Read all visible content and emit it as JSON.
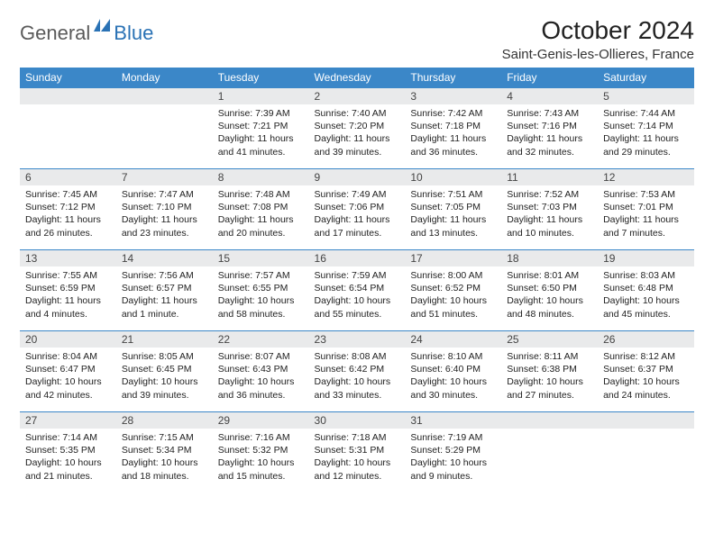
{
  "brand": {
    "name1": "General",
    "name2": "Blue"
  },
  "title": "October 2024",
  "location": "Saint-Genis-les-Ollieres, France",
  "colors": {
    "header_bg": "#3b87c8",
    "header_text": "#ffffff",
    "daynum_bg": "#e9eaeb",
    "row_border": "#3b87c8",
    "logo_gray": "#5a5a5a",
    "logo_blue": "#2a72b5"
  },
  "weekdays": [
    "Sunday",
    "Monday",
    "Tuesday",
    "Wednesday",
    "Thursday",
    "Friday",
    "Saturday"
  ],
  "weeks": [
    [
      {
        "day": "",
        "sunrise": "",
        "sunset": "",
        "daylight": ""
      },
      {
        "day": "",
        "sunrise": "",
        "sunset": "",
        "daylight": ""
      },
      {
        "day": "1",
        "sunrise": "Sunrise: 7:39 AM",
        "sunset": "Sunset: 7:21 PM",
        "daylight": "Daylight: 11 hours and 41 minutes."
      },
      {
        "day": "2",
        "sunrise": "Sunrise: 7:40 AM",
        "sunset": "Sunset: 7:20 PM",
        "daylight": "Daylight: 11 hours and 39 minutes."
      },
      {
        "day": "3",
        "sunrise": "Sunrise: 7:42 AM",
        "sunset": "Sunset: 7:18 PM",
        "daylight": "Daylight: 11 hours and 36 minutes."
      },
      {
        "day": "4",
        "sunrise": "Sunrise: 7:43 AM",
        "sunset": "Sunset: 7:16 PM",
        "daylight": "Daylight: 11 hours and 32 minutes."
      },
      {
        "day": "5",
        "sunrise": "Sunrise: 7:44 AM",
        "sunset": "Sunset: 7:14 PM",
        "daylight": "Daylight: 11 hours and 29 minutes."
      }
    ],
    [
      {
        "day": "6",
        "sunrise": "Sunrise: 7:45 AM",
        "sunset": "Sunset: 7:12 PM",
        "daylight": "Daylight: 11 hours and 26 minutes."
      },
      {
        "day": "7",
        "sunrise": "Sunrise: 7:47 AM",
        "sunset": "Sunset: 7:10 PM",
        "daylight": "Daylight: 11 hours and 23 minutes."
      },
      {
        "day": "8",
        "sunrise": "Sunrise: 7:48 AM",
        "sunset": "Sunset: 7:08 PM",
        "daylight": "Daylight: 11 hours and 20 minutes."
      },
      {
        "day": "9",
        "sunrise": "Sunrise: 7:49 AM",
        "sunset": "Sunset: 7:06 PM",
        "daylight": "Daylight: 11 hours and 17 minutes."
      },
      {
        "day": "10",
        "sunrise": "Sunrise: 7:51 AM",
        "sunset": "Sunset: 7:05 PM",
        "daylight": "Daylight: 11 hours and 13 minutes."
      },
      {
        "day": "11",
        "sunrise": "Sunrise: 7:52 AM",
        "sunset": "Sunset: 7:03 PM",
        "daylight": "Daylight: 11 hours and 10 minutes."
      },
      {
        "day": "12",
        "sunrise": "Sunrise: 7:53 AM",
        "sunset": "Sunset: 7:01 PM",
        "daylight": "Daylight: 11 hours and 7 minutes."
      }
    ],
    [
      {
        "day": "13",
        "sunrise": "Sunrise: 7:55 AM",
        "sunset": "Sunset: 6:59 PM",
        "daylight": "Daylight: 11 hours and 4 minutes."
      },
      {
        "day": "14",
        "sunrise": "Sunrise: 7:56 AM",
        "sunset": "Sunset: 6:57 PM",
        "daylight": "Daylight: 11 hours and 1 minute."
      },
      {
        "day": "15",
        "sunrise": "Sunrise: 7:57 AM",
        "sunset": "Sunset: 6:55 PM",
        "daylight": "Daylight: 10 hours and 58 minutes."
      },
      {
        "day": "16",
        "sunrise": "Sunrise: 7:59 AM",
        "sunset": "Sunset: 6:54 PM",
        "daylight": "Daylight: 10 hours and 55 minutes."
      },
      {
        "day": "17",
        "sunrise": "Sunrise: 8:00 AM",
        "sunset": "Sunset: 6:52 PM",
        "daylight": "Daylight: 10 hours and 51 minutes."
      },
      {
        "day": "18",
        "sunrise": "Sunrise: 8:01 AM",
        "sunset": "Sunset: 6:50 PM",
        "daylight": "Daylight: 10 hours and 48 minutes."
      },
      {
        "day": "19",
        "sunrise": "Sunrise: 8:03 AM",
        "sunset": "Sunset: 6:48 PM",
        "daylight": "Daylight: 10 hours and 45 minutes."
      }
    ],
    [
      {
        "day": "20",
        "sunrise": "Sunrise: 8:04 AM",
        "sunset": "Sunset: 6:47 PM",
        "daylight": "Daylight: 10 hours and 42 minutes."
      },
      {
        "day": "21",
        "sunrise": "Sunrise: 8:05 AM",
        "sunset": "Sunset: 6:45 PM",
        "daylight": "Daylight: 10 hours and 39 minutes."
      },
      {
        "day": "22",
        "sunrise": "Sunrise: 8:07 AM",
        "sunset": "Sunset: 6:43 PM",
        "daylight": "Daylight: 10 hours and 36 minutes."
      },
      {
        "day": "23",
        "sunrise": "Sunrise: 8:08 AM",
        "sunset": "Sunset: 6:42 PM",
        "daylight": "Daylight: 10 hours and 33 minutes."
      },
      {
        "day": "24",
        "sunrise": "Sunrise: 8:10 AM",
        "sunset": "Sunset: 6:40 PM",
        "daylight": "Daylight: 10 hours and 30 minutes."
      },
      {
        "day": "25",
        "sunrise": "Sunrise: 8:11 AM",
        "sunset": "Sunset: 6:38 PM",
        "daylight": "Daylight: 10 hours and 27 minutes."
      },
      {
        "day": "26",
        "sunrise": "Sunrise: 8:12 AM",
        "sunset": "Sunset: 6:37 PM",
        "daylight": "Daylight: 10 hours and 24 minutes."
      }
    ],
    [
      {
        "day": "27",
        "sunrise": "Sunrise: 7:14 AM",
        "sunset": "Sunset: 5:35 PM",
        "daylight": "Daylight: 10 hours and 21 minutes."
      },
      {
        "day": "28",
        "sunrise": "Sunrise: 7:15 AM",
        "sunset": "Sunset: 5:34 PM",
        "daylight": "Daylight: 10 hours and 18 minutes."
      },
      {
        "day": "29",
        "sunrise": "Sunrise: 7:16 AM",
        "sunset": "Sunset: 5:32 PM",
        "daylight": "Daylight: 10 hours and 15 minutes."
      },
      {
        "day": "30",
        "sunrise": "Sunrise: 7:18 AM",
        "sunset": "Sunset: 5:31 PM",
        "daylight": "Daylight: 10 hours and 12 minutes."
      },
      {
        "day": "31",
        "sunrise": "Sunrise: 7:19 AM",
        "sunset": "Sunset: 5:29 PM",
        "daylight": "Daylight: 10 hours and 9 minutes."
      },
      {
        "day": "",
        "sunrise": "",
        "sunset": "",
        "daylight": ""
      },
      {
        "day": "",
        "sunrise": "",
        "sunset": "",
        "daylight": ""
      }
    ]
  ]
}
